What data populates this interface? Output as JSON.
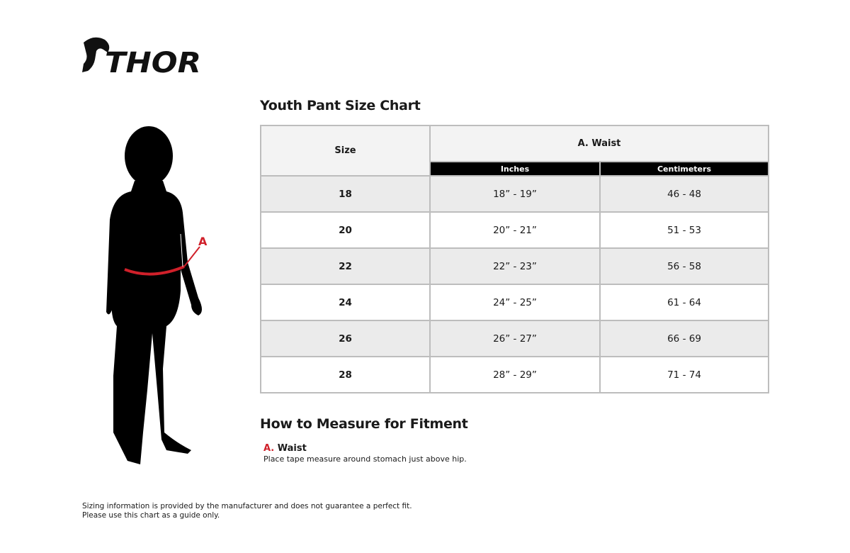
{
  "brand": {
    "logo_text": "THOR"
  },
  "figure": {
    "marker_label": "A",
    "accent_color": "#d0202a"
  },
  "chart_title": "Youth Pant Size Chart",
  "table": {
    "size_header": "Size",
    "group_header": "A. Waist",
    "sub_headers": [
      "Inches",
      "Centimeters"
    ],
    "rows": [
      {
        "size": "18",
        "inches": "18” - 19”",
        "cm": "46 - 48"
      },
      {
        "size": "20",
        "inches": "20” - 21”",
        "cm": "51 - 53"
      },
      {
        "size": "22",
        "inches": "22” - 23”",
        "cm": "56 - 58"
      },
      {
        "size": "24",
        "inches": "24” - 25”",
        "cm": "61 - 64"
      },
      {
        "size": "26",
        "inches": "26” - 27”",
        "cm": "66 - 69"
      },
      {
        "size": "28",
        "inches": "28” - 29”",
        "cm": "71 - 74"
      }
    ]
  },
  "how_to": {
    "title": "How to Measure for Fitment",
    "items": [
      {
        "letter": "A.",
        "name": "Waist",
        "description": "Place tape measure around stomach just above hip."
      }
    ]
  },
  "footer": {
    "line1": "Sizing information is provided by the manufacturer and does not guarantee a perfect fit.",
    "line2": "Please use this chart as a guide only."
  }
}
